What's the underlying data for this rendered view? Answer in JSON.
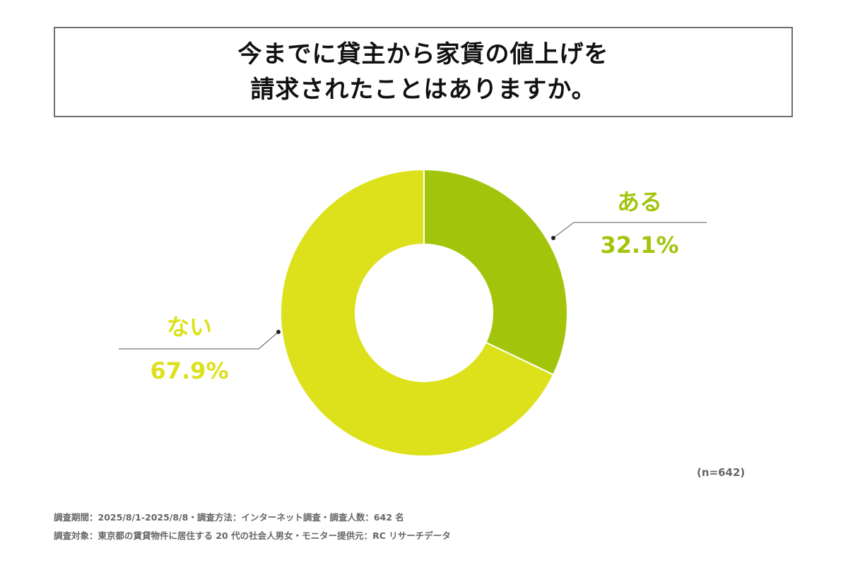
{
  "chart_data": {
    "type": "pie",
    "title_lines": [
      "今までに貸主から家賃の値上げを",
      "請求されたことはありますか。"
    ],
    "slices": [
      {
        "label": "ある",
        "value": 32.1,
        "value_label": "32.1%",
        "color": "#a2c50c"
      },
      {
        "label": "ない",
        "value": 67.9,
        "value_label": "67.9%",
        "color": "#dde11b"
      }
    ],
    "sample_size": "(n=642)"
  },
  "footer": {
    "line1": "調査期間：2025/8/1-2025/8/8・調査方法：インターネット調査・調査人数：642 名",
    "line2": "調査対象：東京都の賃貸物件に居住する 20 代の社会人男女・モニター提供元：RC リサーチデータ"
  }
}
